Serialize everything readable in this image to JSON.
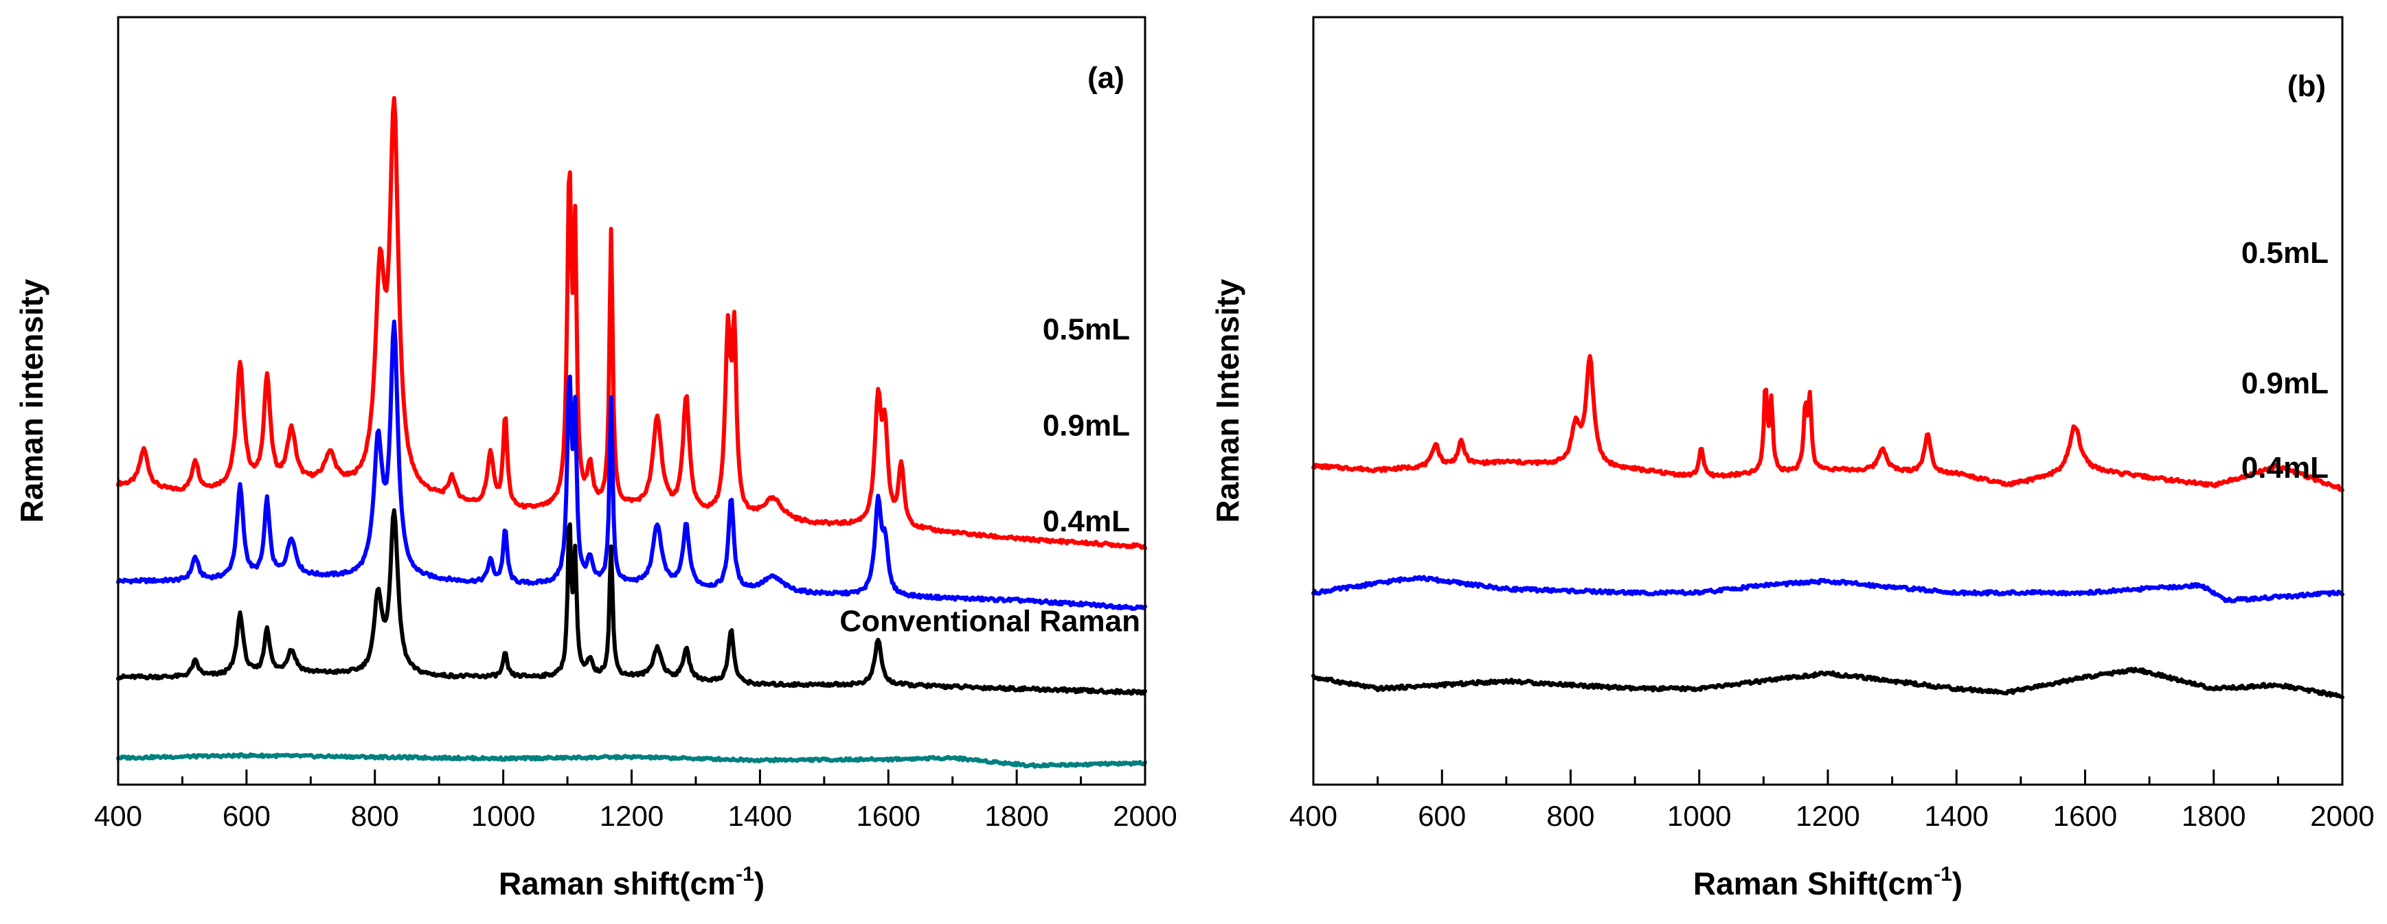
{
  "chart_data": [
    {
      "type": "line",
      "panel_label": "(a)",
      "xlabel": "Raman shift(cm",
      "xlabel_sup": "-1",
      "xlabel_close": ")",
      "ylabel": "Raman intensity",
      "xlim": [
        400,
        2000
      ],
      "ylim": [
        0,
        100
      ],
      "y_ticks_shown": false,
      "x_ticks": [
        400,
        600,
        800,
        1000,
        1200,
        1400,
        1600,
        1800,
        2000
      ],
      "x_tick_labels": [
        "400",
        "600",
        "800",
        "1000",
        "1200",
        "1400",
        "1600",
        "1800",
        "2000"
      ],
      "series": [
        {
          "name": "0.5mL",
          "color": "#ff0000",
          "baseline": [
            [
              400,
              39
            ],
            [
              500,
              38
            ],
            [
              700,
              39
            ],
            [
              900,
              37
            ],
            [
              1000,
              35.5
            ],
            [
              1200,
              36
            ],
            [
              1400,
              34
            ],
            [
              1600,
              33.5
            ],
            [
              1800,
              32
            ],
            [
              2000,
              31
            ]
          ],
          "peaks": [
            [
              440,
              5,
              8
            ],
            [
              520,
              4,
              6
            ],
            [
              590,
              16,
              7
            ],
            [
              632,
              14,
              6
            ],
            [
              670,
              7,
              8
            ],
            [
              730,
              4,
              10
            ],
            [
              808,
              26,
              9
            ],
            [
              830,
              48,
              8
            ],
            [
              920,
              3,
              6
            ],
            [
              980,
              7,
              6
            ],
            [
              1003,
              12,
              4
            ],
            [
              1103,
              42,
              4
            ],
            [
              1112,
              32,
              3
            ],
            [
              1135,
              5,
              5
            ],
            [
              1168,
              36,
              3
            ],
            [
              1240,
              12,
              8
            ],
            [
              1285,
              15,
              6
            ],
            [
              1350,
              23,
              5
            ],
            [
              1360,
              22,
              4
            ],
            [
              1420,
              3,
              20
            ],
            [
              1584,
              16,
              6
            ],
            [
              1595,
              11,
              5
            ],
            [
              1620,
              8,
              5
            ]
          ]
        },
        {
          "name": "0.9mL",
          "color": "#0000ff",
          "baseline": [
            [
              400,
              26.5
            ],
            [
              500,
              26.5
            ],
            [
              700,
              27
            ],
            [
              900,
              26.5
            ],
            [
              1000,
              26
            ],
            [
              1200,
              26
            ],
            [
              1400,
              25
            ],
            [
              1600,
              24.5
            ],
            [
              1800,
              24
            ],
            [
              2000,
              23
            ]
          ],
          "peaks": [
            [
              520,
              3,
              6
            ],
            [
              590,
              12,
              6
            ],
            [
              632,
              10,
              5
            ],
            [
              670,
              5,
              8
            ],
            [
              805,
              17,
              8
            ],
            [
              830,
              32,
              7
            ],
            [
              980,
              3,
              5
            ],
            [
              1003,
              7,
              4
            ],
            [
              1103,
              26,
              4
            ],
            [
              1112,
              20,
              3
            ],
            [
              1135,
              3,
              5
            ],
            [
              1168,
              24,
              3
            ],
            [
              1240,
              8,
              8
            ],
            [
              1285,
              8,
              6
            ],
            [
              1355,
              12,
              5
            ],
            [
              1420,
              2,
              20
            ],
            [
              1584,
              12,
              6
            ],
            [
              1595,
              6,
              5
            ]
          ]
        },
        {
          "name": "0.4mL",
          "color": "#000000",
          "baseline": [
            [
              400,
              14
            ],
            [
              500,
              14
            ],
            [
              700,
              14.5
            ],
            [
              900,
              14
            ],
            [
              1000,
              14
            ],
            [
              1200,
              14
            ],
            [
              1400,
              13
            ],
            [
              1600,
              13
            ],
            [
              1800,
              12.5
            ],
            [
              2000,
              12
            ]
          ],
          "peaks": [
            [
              520,
              2,
              6
            ],
            [
              590,
              8,
              6
            ],
            [
              632,
              6,
              5
            ],
            [
              670,
              3,
              8
            ],
            [
              805,
              10,
              7
            ],
            [
              830,
              21,
              7
            ],
            [
              1003,
              3,
              4
            ],
            [
              1103,
              20,
              3
            ],
            [
              1112,
              15,
              3
            ],
            [
              1135,
              2,
              5
            ],
            [
              1168,
              17,
              3
            ],
            [
              1240,
              4,
              8
            ],
            [
              1285,
              4,
              6
            ],
            [
              1355,
              7,
              5
            ],
            [
              1584,
              6,
              6
            ]
          ]
        },
        {
          "name": "Conventional Raman",
          "color": "#008080",
          "baseline": [
            [
              400,
              3.5
            ],
            [
              600,
              3.8
            ],
            [
              800,
              3.6
            ],
            [
              1000,
              3.4
            ],
            [
              1200,
              3.6
            ],
            [
              1400,
              3.2
            ],
            [
              1600,
              3.3
            ],
            [
              1700,
              3.5
            ],
            [
              1820,
              2.5
            ],
            [
              2000,
              2.8
            ]
          ],
          "peaks": []
        }
      ]
    },
    {
      "type": "line",
      "panel_label": "(b)",
      "xlabel": "Raman Shift(cm",
      "xlabel_sup": "-1",
      "xlabel_close": ")",
      "ylabel": "Raman Intensity",
      "xlim": [
        400,
        2000
      ],
      "ylim": [
        0,
        100
      ],
      "y_ticks_shown": false,
      "x_ticks": [
        400,
        600,
        800,
        1000,
        1200,
        1400,
        1600,
        1800,
        2000
      ],
      "x_tick_labels": [
        "400",
        "600",
        "800",
        "1000",
        "1200",
        "1400",
        "1600",
        "1800",
        "2000"
      ],
      "series": [
        {
          "name": "0.5mL",
          "color": "#ff0000",
          "baseline": [
            [
              400,
              41.5
            ],
            [
              500,
              41
            ],
            [
              700,
              42
            ],
            [
              900,
              41
            ],
            [
              1000,
              40
            ],
            [
              1200,
              41
            ],
            [
              1400,
              40.5
            ],
            [
              1480,
              39
            ],
            [
              1600,
              41
            ],
            [
              1700,
              40
            ],
            [
              1800,
              39
            ],
            [
              1900,
              41.5
            ],
            [
              2000,
              38.5
            ]
          ],
          "peaks": [
            [
              590,
              3,
              6
            ],
            [
              630,
              3,
              6
            ],
            [
              808,
              5,
              8
            ],
            [
              830,
              14,
              7
            ],
            [
              1003,
              4,
              4
            ],
            [
              1103,
              11,
              3
            ],
            [
              1112,
              9,
              3
            ],
            [
              1165,
              8,
              3
            ],
            [
              1172,
              9,
              3
            ],
            [
              1285,
              3,
              8
            ],
            [
              1355,
              5,
              6
            ],
            [
              1584,
              6,
              10
            ]
          ]
        },
        {
          "name": "0.9mL",
          "color": "#0000ff",
          "baseline": [
            [
              400,
              25
            ],
            [
              560,
              27
            ],
            [
              700,
              25.5
            ],
            [
              900,
              25
            ],
            [
              1000,
              25
            ],
            [
              1100,
              26
            ],
            [
              1200,
              26.5
            ],
            [
              1400,
              25
            ],
            [
              1600,
              25
            ],
            [
              1780,
              26
            ],
            [
              1820,
              24
            ],
            [
              2000,
              25
            ]
          ],
          "peaks": []
        },
        {
          "name": "0.4mL",
          "color": "#000000",
          "baseline": [
            [
              400,
              14
            ],
            [
              500,
              12.5
            ],
            [
              700,
              13.5
            ],
            [
              900,
              12.5
            ],
            [
              1000,
              12.5
            ],
            [
              1200,
              14.5
            ],
            [
              1400,
              12.5
            ],
            [
              1480,
              12
            ],
            [
              1600,
              14
            ],
            [
              1680,
              15
            ],
            [
              1800,
              12.5
            ],
            [
              1900,
              13
            ],
            [
              2000,
              11.5
            ]
          ],
          "peaks": []
        }
      ]
    }
  ]
}
